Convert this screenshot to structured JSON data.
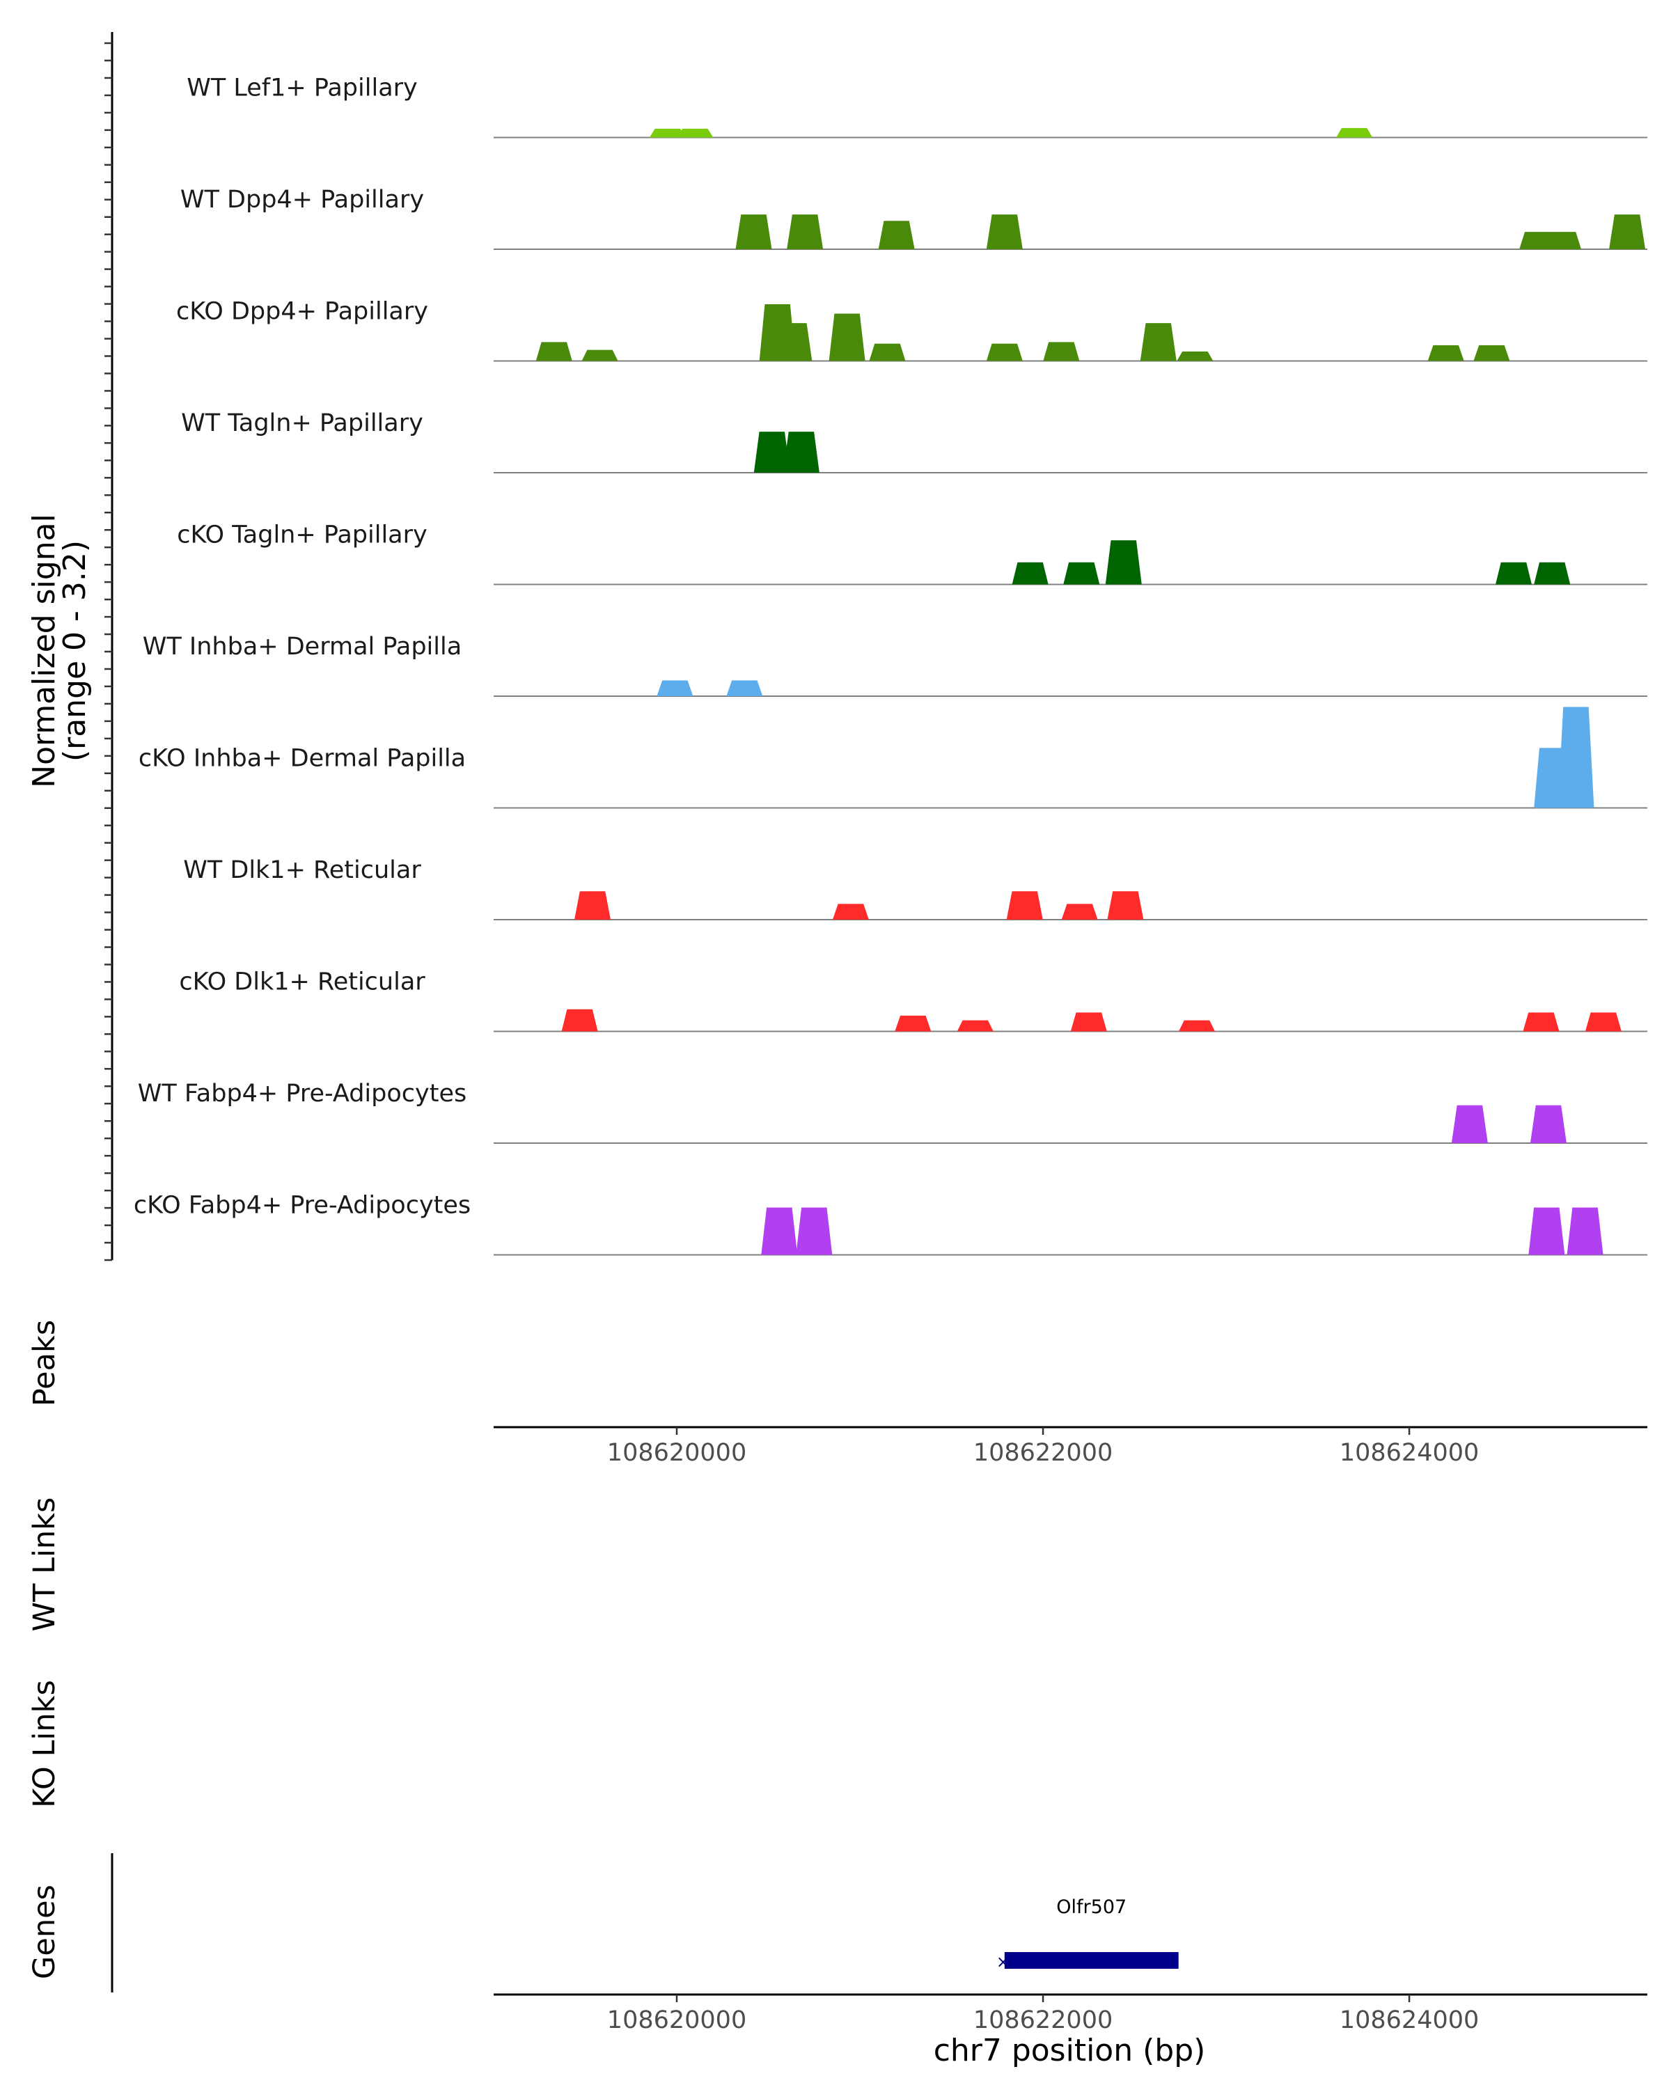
{
  "chart_data": {
    "type": "area",
    "title": "",
    "chrom": "chr7",
    "xlabel": "chr7 position (bp)",
    "ylabel": "Normalized signal",
    "ylabel_range": "(range 0 - 3.2)",
    "xlim": [
      108619000,
      108625300
    ],
    "ylim": [
      0,
      3.2
    ],
    "x_ticks": [
      108620000,
      108622000,
      108624000
    ],
    "x_tick_labels": [
      "108620000",
      "108622000",
      "108624000"
    ],
    "panel_labels": {
      "peaks": "Peaks",
      "wt_links": "WT Links",
      "ko_links": "KO Links",
      "genes": "Genes"
    },
    "series": [
      {
        "name": "WT Lef1+ Papillary",
        "color": "#7ACD0B",
        "peaks": [
          [
            108619950,
            0.28
          ],
          [
            108620100,
            0.28
          ],
          [
            108623700,
            0.3
          ]
        ]
      },
      {
        "name": "WT Dpp4+ Papillary",
        "color": "#4A8A0A",
        "peaks": [
          [
            108620420,
            1.1
          ],
          [
            108620700,
            1.1
          ],
          [
            108621200,
            0.9
          ],
          [
            108621790,
            1.1
          ],
          [
            108624700,
            0.55
          ],
          [
            108624840,
            0.55
          ],
          [
            108625190,
            1.1
          ]
        ]
      },
      {
        "name": "cKO Dpp4+ Papillary",
        "color": "#4A8A0A",
        "peaks": [
          [
            108619330,
            0.6
          ],
          [
            108619580,
            0.35
          ],
          [
            108620550,
            1.8
          ],
          [
            108620640,
            1.2
          ],
          [
            108620930,
            1.5
          ],
          [
            108621150,
            0.55
          ],
          [
            108621790,
            0.55
          ],
          [
            108622100,
            0.6
          ],
          [
            108622630,
            1.2
          ],
          [
            108622830,
            0.3
          ],
          [
            108624200,
            0.5
          ],
          [
            108624450,
            0.5
          ]
        ]
      },
      {
        "name": "WT Tagln+ Papillary",
        "color": "#006400",
        "peaks": [
          [
            108620520,
            1.3
          ],
          [
            108620680,
            1.3
          ]
        ]
      },
      {
        "name": "cKO Tagln+ Papillary",
        "color": "#006400",
        "peaks": [
          [
            108621930,
            0.7
          ],
          [
            108622210,
            0.7
          ],
          [
            108622440,
            1.4
          ],
          [
            108624570,
            0.7
          ],
          [
            108624780,
            0.7
          ]
        ]
      },
      {
        "name": "WT Inhba+ Dermal Papilla",
        "color": "#5DADEC",
        "peaks": [
          [
            108619990,
            0.5
          ],
          [
            108620370,
            0.5
          ]
        ]
      },
      {
        "name": "cKO Inhba+ Dermal Papilla",
        "color": "#5DADEC",
        "peaks": [
          [
            108624780,
            1.9
          ],
          [
            108624910,
            3.2
          ]
        ]
      },
      {
        "name": "WT Dlk1+ Reticular",
        "color": "#FF2A2A",
        "peaks": [
          [
            108619540,
            0.9
          ],
          [
            108620950,
            0.5
          ],
          [
            108621900,
            0.9
          ],
          [
            108622200,
            0.5
          ],
          [
            108622450,
            0.9
          ]
        ]
      },
      {
        "name": "cKO Dlk1+ Reticular",
        "color": "#FF2A2A",
        "peaks": [
          [
            108619470,
            0.7
          ],
          [
            108621290,
            0.5
          ],
          [
            108621630,
            0.35
          ],
          [
            108622250,
            0.6
          ],
          [
            108622840,
            0.35
          ],
          [
            108624720,
            0.6
          ],
          [
            108625060,
            0.6
          ]
        ]
      },
      {
        "name": "WT Fabp4+ Pre-Adipocytes",
        "color": "#B040F0",
        "peaks": [
          [
            108624330,
            1.2
          ],
          [
            108624760,
            1.2
          ]
        ]
      },
      {
        "name": "cKO Fabp4+ Pre-Adipocytes",
        "color": "#B040F0",
        "peaks": [
          [
            108620560,
            1.5
          ],
          [
            108620750,
            1.5
          ],
          [
            108624750,
            1.5
          ],
          [
            108624960,
            1.5
          ]
        ]
      }
    ],
    "genes": [
      {
        "name": "Olfr507",
        "start": 108621790,
        "end": 108622740,
        "strand": "-",
        "color": "#00008B"
      }
    ]
  }
}
